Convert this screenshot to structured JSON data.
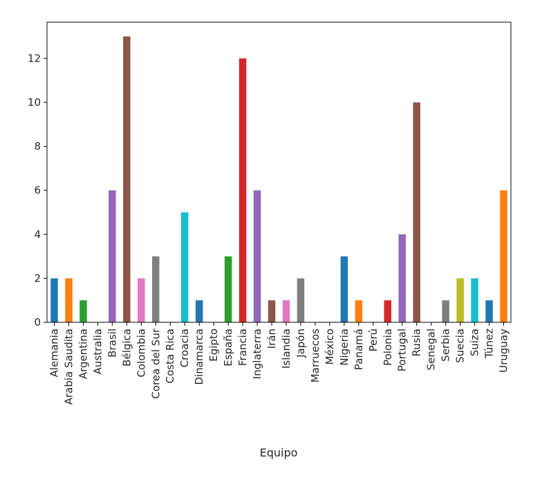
{
  "chart_data": {
    "type": "bar",
    "title": "",
    "xlabel": "Equipo",
    "ylabel": "",
    "ylim": [
      0,
      13.65
    ],
    "yticks": [
      0,
      2,
      4,
      6,
      8,
      10,
      12
    ],
    "grid": false,
    "categories": [
      "Alemania",
      "Arabia Saudita",
      "Argentina",
      "Australia",
      "Brasil",
      "Bélgica",
      "Colombia",
      "Corea del Sur",
      "Costa Rica",
      "Croacia",
      "Dinamarca",
      "Egipto",
      "España",
      "Francia",
      "Inglaterra",
      "Irán",
      "Islandia",
      "Japón",
      "Marruecos",
      "México",
      "Nigeria",
      "Panamá",
      "Perú",
      "Polonia",
      "Portugal",
      "Rusia",
      "Senegal",
      "Serbia",
      "Suecia",
      "Suiza",
      "Túnez",
      "Uruguay"
    ],
    "values": [
      2,
      2,
      1,
      0,
      6,
      13,
      2,
      3,
      0,
      5,
      1,
      0,
      3,
      12,
      6,
      1,
      1,
      2,
      0,
      0,
      3,
      1,
      0,
      1,
      4,
      10,
      0,
      1,
      2,
      2,
      1,
      6
    ],
    "colors": [
      "#1f77b4",
      "#ff7f0e",
      "#2ca02c",
      "#d62728",
      "#9467bd",
      "#8c564b",
      "#e377c2",
      "#7f7f7f",
      "#bcbd22",
      "#17becf"
    ]
  }
}
